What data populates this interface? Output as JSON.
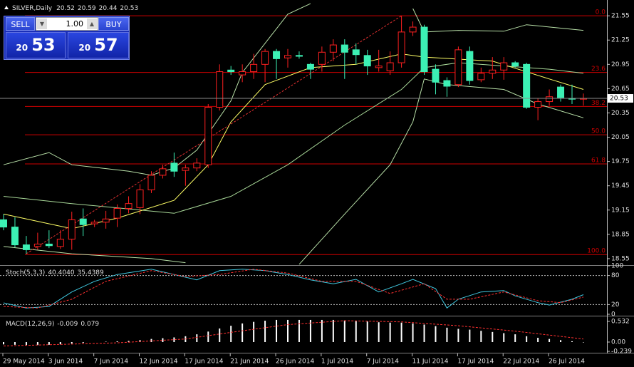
{
  "trade_panel": {
    "sell_label": "SELL",
    "lot": "1.00",
    "buy_label": "BUY",
    "sell_small": "20",
    "sell_big": "53",
    "buy_small": "20",
    "buy_big": "57"
  },
  "chart_data": [
    {
      "type": "candlestick",
      "title": "SILVER,Daily",
      "categories": [
        "29 May 2014",
        null,
        null,
        null,
        "3 Jun 2014",
        null,
        null,
        null,
        "7 Jun 2014",
        null,
        null,
        null,
        "12 Jun 2014",
        null,
        null,
        null,
        "17 Jun 2014",
        null,
        null,
        null,
        "21 Jun 2014",
        null,
        null,
        null,
        "26 Jun 2014",
        null,
        null,
        null,
        "1 Jul 2014",
        null,
        null,
        null,
        "7 Jul 2014",
        null,
        null,
        null,
        "11 Jul 2014",
        null,
        null,
        null,
        "17 Jul 2014",
        null,
        null,
        null,
        "22 Jul 2014",
        null,
        null,
        null,
        "26 Jul 2014",
        null,
        null,
        null
      ],
      "open": [
        19.03,
        18.94,
        18.72,
        18.7,
        18.73,
        18.7,
        18.79,
        19.04,
        18.98,
        19.0,
        19.05,
        19.17,
        19.18,
        19.4,
        19.58,
        19.73,
        19.64,
        19.67,
        19.71,
        20.42,
        20.88,
        20.82,
        20.86,
        20.95,
        21.11,
        21.03,
        21.06,
        20.95,
        20.95,
        21.1,
        21.19,
        21.13,
        21.06,
        20.91,
        20.87,
        20.97,
        21.35,
        21.41,
        20.89,
        20.75,
        20.7,
        21.11,
        20.76,
        20.84,
        20.88,
        20.97,
        20.95,
        20.42,
        20.49,
        20.67,
        20.53,
        20.52
      ],
      "high": [
        19.1,
        19.06,
        18.83,
        18.87,
        18.9,
        18.9,
        19.13,
        19.17,
        19.03,
        19.14,
        19.22,
        19.32,
        19.47,
        19.63,
        19.71,
        19.86,
        19.71,
        19.79,
        20.46,
        20.95,
        20.93,
        20.95,
        21.08,
        21.14,
        21.14,
        21.14,
        21.11,
        20.97,
        21.17,
        21.26,
        21.26,
        21.21,
        21.13,
        21.13,
        21.11,
        21.55,
        21.48,
        21.44,
        20.95,
        20.79,
        21.17,
        21.17,
        20.91,
        21.04,
        21.04,
        20.99,
        20.97,
        20.53,
        20.64,
        20.7,
        20.7,
        20.59
      ],
      "low": [
        18.9,
        18.69,
        18.61,
        18.66,
        18.68,
        18.67,
        18.66,
        18.83,
        18.94,
        18.92,
        18.94,
        19.11,
        19.1,
        19.36,
        19.54,
        19.56,
        19.45,
        19.63,
        19.67,
        20.38,
        20.82,
        20.73,
        20.77,
        20.73,
        20.77,
        20.91,
        21.02,
        20.77,
        20.86,
        20.99,
        20.77,
        20.95,
        20.82,
        20.86,
        20.82,
        20.91,
        21.3,
        20.82,
        20.58,
        20.55,
        20.67,
        20.7,
        20.73,
        20.77,
        20.76,
        20.91,
        20.4,
        20.26,
        20.44,
        20.49,
        20.46,
        20.44
      ],
      "close": [
        18.94,
        18.72,
        18.66,
        18.73,
        18.71,
        18.79,
        19.03,
        18.97,
        19.0,
        19.04,
        19.17,
        19.23,
        19.4,
        19.58,
        19.66,
        19.63,
        19.67,
        19.73,
        20.42,
        20.86,
        20.86,
        20.86,
        20.95,
        21.11,
        21.02,
        21.06,
        21.05,
        20.89,
        21.1,
        21.19,
        21.1,
        21.07,
        20.93,
        20.93,
        20.97,
        21.35,
        21.41,
        20.86,
        20.73,
        20.68,
        21.13,
        20.75,
        20.84,
        20.88,
        20.97,
        20.93,
        20.42,
        20.49,
        20.55,
        20.54,
        20.52,
        20.53
      ],
      "bull_color": "#ff2020",
      "bear_color": "#3cf0b4",
      "ylim": [
        18.47,
        21.71
      ],
      "yticks": [
        21.55,
        21.25,
        20.95,
        20.65,
        20.35,
        20.05,
        19.75,
        19.45,
        19.15,
        18.85,
        18.55
      ],
      "lines": [
        {
          "color": "#b8e0a8",
          "x": [
            0,
            4,
            6,
            11,
            13,
            15,
            17,
            20,
            21,
            23,
            25,
            27,
            28,
            36,
            37,
            40,
            44,
            46,
            51
          ],
          "values": [
            19.71,
            19.86,
            19.71,
            19.63,
            19.58,
            19.67,
            19.89,
            20.5,
            20.85,
            21.21,
            21.57,
            21.7,
            null,
            21.64,
            21.35,
            21.37,
            21.36,
            21.44,
            21.37
          ]
        },
        {
          "color": "#a8d898",
          "x": [
            0,
            6,
            15,
            20,
            25,
            30,
            35,
            37,
            40,
            44,
            48,
            51
          ],
          "values": [
            19.32,
            19.23,
            19.11,
            19.32,
            19.71,
            20.2,
            20.64,
            20.91,
            20.97,
            20.93,
            20.89,
            20.84
          ]
        },
        {
          "color": "#b8e0a8",
          "x": [
            0,
            6,
            13,
            16,
            17,
            26,
            30,
            34,
            36,
            37,
            39,
            44,
            47,
            51
          ],
          "values": [
            18.7,
            18.61,
            18.55,
            18.5,
            null,
            18.48,
            19.1,
            19.71,
            20.24,
            20.77,
            20.7,
            20.64,
            20.46,
            20.29
          ]
        },
        {
          "color": "#ffff66",
          "x": [
            0,
            6,
            10,
            15,
            18,
            20,
            23,
            27,
            31,
            35,
            37,
            43,
            48,
            51
          ],
          "values": [
            19.1,
            18.92,
            19.05,
            19.27,
            19.71,
            20.24,
            20.7,
            20.91,
            20.95,
            21.08,
            21.04,
            20.99,
            20.77,
            20.64
          ]
        },
        {
          "color": "#e03030",
          "dash": true,
          "x": [
            2,
            35
          ],
          "values": [
            18.61,
            21.55
          ]
        }
      ],
      "fib_color": "#d00000",
      "fib_levels": [
        {
          "label": "0.0",
          "value": 21.55
        },
        {
          "label": "23.6",
          "value": 20.85
        },
        {
          "label": "38.2",
          "value": 20.43
        },
        {
          "label": "50.0",
          "value": 20.08
        },
        {
          "label": "61.8",
          "value": 19.72
        },
        {
          "label": "100.0",
          "value": 18.6
        }
      ]
    },
    {
      "type": "line",
      "title": "Stoch(5,3,3)",
      "header_values": [
        "40.4040",
        "35.4389"
      ],
      "ylim": [
        0,
        100
      ],
      "yticks": [
        0,
        20,
        80,
        100
      ],
      "series": [
        {
          "color": "#40c8e0",
          "x": [
            0,
            2,
            4,
            6,
            8,
            10,
            13,
            15,
            17,
            19,
            21,
            23,
            25,
            27,
            29,
            31,
            33,
            35,
            36,
            38,
            39,
            40,
            42,
            44,
            45,
            47,
            48,
            50,
            51
          ],
          "values": [
            23.5,
            13,
            16,
            46,
            68,
            82,
            93,
            82,
            71,
            90,
            93,
            90,
            82,
            71,
            63,
            72,
            46,
            63,
            72,
            53,
            13,
            31,
            46,
            49,
            38,
            24,
            19,
            31,
            40.404
          ]
        },
        {
          "color": "#ff3030",
          "dash": true,
          "x": [
            0,
            3,
            6,
            9,
            13,
            16,
            19,
            22,
            25,
            28,
            31,
            34,
            37,
            39,
            41,
            44,
            47,
            49,
            51
          ],
          "values": [
            16,
            13,
            31,
            68,
            90,
            78,
            82,
            93,
            85,
            68,
            68,
            43,
            63,
            31,
            31,
            46,
            28,
            24,
            35.4389
          ]
        }
      ]
    },
    {
      "type": "bar",
      "title": "MACD(12,26,9)",
      "header_values": [
        "-0.009",
        "0.079"
      ],
      "ylim": [
        -0.275,
        0.624
      ],
      "yticks": [
        0.532,
        {
          "value": 0,
          "label": "0.00"
        },
        -0.239
      ],
      "color": "#ffffff",
      "values": [
        -0.06,
        -0.07,
        -0.08,
        -0.08,
        -0.07,
        -0.06,
        -0.04,
        -0.02,
        0.0,
        0.01,
        0.02,
        0.03,
        0.05,
        0.08,
        0.1,
        0.12,
        0.15,
        0.2,
        0.27,
        0.35,
        0.42,
        0.48,
        0.52,
        0.55,
        0.57,
        0.57,
        0.57,
        0.57,
        0.57,
        0.57,
        0.56,
        0.55,
        0.53,
        0.51,
        0.5,
        0.5,
        0.48,
        0.45,
        0.41,
        0.37,
        0.34,
        0.32,
        0.29,
        0.26,
        0.23,
        0.2,
        0.15,
        0.11,
        0.08,
        0.05,
        0.02,
        -0.009
      ],
      "signal": {
        "color": "#ff3030",
        "x": [
          0,
          10,
          16,
          20,
          25,
          30,
          35,
          40,
          45,
          51
        ],
        "values": [
          -0.1,
          -0.02,
          0.08,
          0.25,
          0.45,
          0.55,
          0.52,
          0.42,
          0.28,
          0.079
        ]
      }
    }
  ]
}
